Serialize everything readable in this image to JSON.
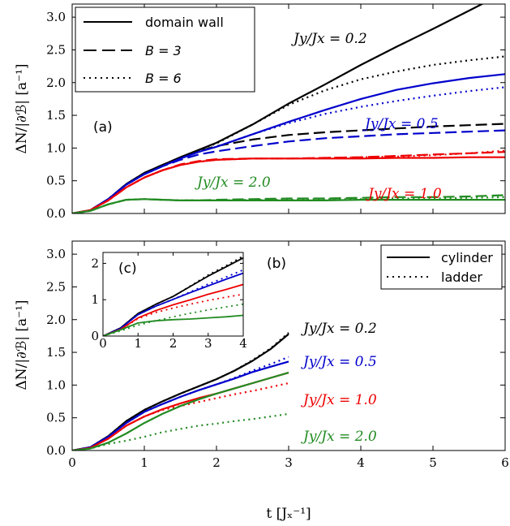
{
  "chart_data": [
    {
      "id": "a",
      "type": "line",
      "panel_label": "(a)",
      "ylabel": "ΔN/|∂ℬ| [a⁻¹]",
      "xlim": [
        0,
        6
      ],
      "ylim": [
        0,
        3.2
      ],
      "yticks": [
        "0.0",
        "0.5",
        "1.0",
        "1.5",
        "2.0",
        "2.5",
        "3.0"
      ],
      "legend": [
        {
          "label": "domain wall",
          "style": "solid"
        },
        {
          "label": "B = 3",
          "style": "dashed"
        },
        {
          "label": "B = 6",
          "style": "dotted"
        }
      ],
      "annotations": [
        {
          "text": "Jy/Jx = 0.2",
          "color": "#000000"
        },
        {
          "text": "Jy/Jx = 0.5",
          "color": "#0000cc"
        },
        {
          "text": "Jy/Jx = 1.0",
          "color": "#ee0000"
        },
        {
          "text": "Jy/Jx = 2.0",
          "color": "#228b22"
        }
      ],
      "series": [
        {
          "ratio": "0.2",
          "style": "solid",
          "color": "#000000",
          "x": [
            0,
            0.25,
            0.5,
            0.75,
            1,
            1.25,
            1.5,
            1.75,
            2,
            2.5,
            3,
            3.5,
            4,
            4.5,
            5,
            5.5,
            6
          ],
          "y": [
            0,
            0.05,
            0.22,
            0.45,
            0.62,
            0.74,
            0.86,
            0.97,
            1.08,
            1.36,
            1.68,
            1.97,
            2.27,
            2.55,
            2.82,
            3.1,
            3.38
          ]
        },
        {
          "ratio": "0.2",
          "style": "dashed",
          "color": "#000000",
          "x": [
            0,
            0.25,
            0.5,
            0.75,
            1,
            1.25,
            1.5,
            1.75,
            2,
            2.5,
            3,
            3.5,
            4,
            4.5,
            5,
            5.5,
            6
          ],
          "y": [
            0,
            0.05,
            0.22,
            0.45,
            0.62,
            0.74,
            0.86,
            0.95,
            1.03,
            1.13,
            1.2,
            1.24,
            1.27,
            1.3,
            1.33,
            1.35,
            1.37
          ]
        },
        {
          "ratio": "0.2",
          "style": "dotted",
          "color": "#000000",
          "x": [
            0,
            0.25,
            0.5,
            0.75,
            1,
            1.25,
            1.5,
            1.75,
            2,
            2.5,
            3,
            3.5,
            4,
            4.5,
            5,
            5.5,
            6
          ],
          "y": [
            0,
            0.05,
            0.22,
            0.45,
            0.62,
            0.74,
            0.86,
            0.97,
            1.07,
            1.36,
            1.66,
            1.88,
            2.05,
            2.17,
            2.27,
            2.34,
            2.4
          ]
        },
        {
          "ratio": "0.5",
          "style": "solid",
          "color": "#0000cc",
          "x": [
            0,
            0.25,
            0.5,
            0.75,
            1,
            1.25,
            1.5,
            1.75,
            2,
            2.5,
            3,
            3.5,
            4,
            4.5,
            5,
            5.5,
            6
          ],
          "y": [
            0,
            0.05,
            0.22,
            0.44,
            0.6,
            0.72,
            0.84,
            0.94,
            1.02,
            1.21,
            1.4,
            1.58,
            1.75,
            1.89,
            1.99,
            2.07,
            2.13
          ]
        },
        {
          "ratio": "0.5",
          "style": "dashed",
          "color": "#0000cc",
          "x": [
            0,
            0.25,
            0.5,
            0.75,
            1,
            1.25,
            1.5,
            1.75,
            2,
            2.5,
            3,
            3.5,
            4,
            4.5,
            5,
            5.5,
            6
          ],
          "y": [
            0,
            0.05,
            0.22,
            0.44,
            0.6,
            0.72,
            0.82,
            0.9,
            0.95,
            1.03,
            1.1,
            1.15,
            1.18,
            1.21,
            1.23,
            1.25,
            1.27
          ]
        },
        {
          "ratio": "0.5",
          "style": "dotted",
          "color": "#0000cc",
          "x": [
            0,
            0.25,
            0.5,
            0.75,
            1,
            1.25,
            1.5,
            1.75,
            2,
            2.5,
            3,
            3.5,
            4,
            4.5,
            5,
            5.5,
            6
          ],
          "y": [
            0,
            0.05,
            0.22,
            0.44,
            0.6,
            0.72,
            0.84,
            0.94,
            1.02,
            1.21,
            1.38,
            1.52,
            1.63,
            1.72,
            1.8,
            1.87,
            1.93
          ]
        },
        {
          "ratio": "1.0",
          "style": "solid",
          "color": "#ee0000",
          "x": [
            0,
            0.25,
            0.5,
            0.75,
            1,
            1.25,
            1.5,
            1.75,
            2,
            2.5,
            3,
            3.5,
            4,
            4.5,
            5,
            5.5,
            6
          ],
          "y": [
            0,
            0.05,
            0.2,
            0.4,
            0.55,
            0.66,
            0.74,
            0.79,
            0.82,
            0.84,
            0.84,
            0.84,
            0.84,
            0.85,
            0.85,
            0.86,
            0.86
          ]
        },
        {
          "ratio": "1.0",
          "style": "dashed",
          "color": "#ee0000",
          "x": [
            0,
            0.25,
            0.5,
            0.75,
            1,
            1.25,
            1.5,
            1.75,
            2,
            2.5,
            3,
            3.5,
            4,
            4.5,
            5,
            5.5,
            6
          ],
          "y": [
            0,
            0.05,
            0.2,
            0.4,
            0.55,
            0.66,
            0.75,
            0.8,
            0.83,
            0.84,
            0.84,
            0.85,
            0.86,
            0.88,
            0.9,
            0.92,
            0.94
          ]
        },
        {
          "ratio": "1.0",
          "style": "dotted",
          "color": "#ee0000",
          "x": [
            0,
            0.25,
            0.5,
            0.75,
            1,
            1.25,
            1.5,
            1.75,
            2,
            2.5,
            3,
            3.5,
            4,
            4.5,
            5,
            5.5,
            6
          ],
          "y": [
            0,
            0.05,
            0.2,
            0.4,
            0.55,
            0.66,
            0.74,
            0.79,
            0.82,
            0.84,
            0.84,
            0.85,
            0.86,
            0.87,
            0.89,
            0.92,
            0.96
          ]
        },
        {
          "ratio": "2.0",
          "style": "solid",
          "color": "#228b22",
          "x": [
            0,
            0.25,
            0.5,
            0.75,
            1,
            1.25,
            1.5,
            1.75,
            2,
            2.5,
            3,
            3.5,
            4,
            4.5,
            5,
            5.5,
            6
          ],
          "y": [
            0,
            0.04,
            0.14,
            0.21,
            0.22,
            0.21,
            0.2,
            0.2,
            0.2,
            0.2,
            0.2,
            0.2,
            0.21,
            0.21,
            0.21,
            0.21,
            0.21
          ]
        },
        {
          "ratio": "2.0",
          "style": "dashed",
          "color": "#228b22",
          "x": [
            0,
            0.25,
            0.5,
            0.75,
            1,
            1.25,
            1.5,
            1.75,
            2,
            2.5,
            3,
            3.5,
            4,
            4.5,
            5,
            5.5,
            6
          ],
          "y": [
            0,
            0.04,
            0.14,
            0.21,
            0.22,
            0.21,
            0.2,
            0.2,
            0.21,
            0.22,
            0.23,
            0.23,
            0.24,
            0.25,
            0.25,
            0.26,
            0.28
          ]
        },
        {
          "ratio": "2.0",
          "style": "dotted",
          "color": "#228b22",
          "x": [
            0,
            0.25,
            0.5,
            0.75,
            1,
            1.25,
            1.5,
            1.75,
            2,
            2.5,
            3,
            3.5,
            4,
            4.5,
            5,
            5.5,
            6
          ],
          "y": [
            0,
            0.04,
            0.14,
            0.21,
            0.22,
            0.21,
            0.2,
            0.2,
            0.2,
            0.21,
            0.21,
            0.22,
            0.22,
            0.23,
            0.23,
            0.24,
            0.25
          ]
        }
      ]
    },
    {
      "id": "b",
      "type": "line",
      "panel_label": "(b)",
      "xlabel": "t [Jₓ⁻¹]",
      "ylabel": "ΔN/|∂ℬ| [a⁻¹]",
      "xlim": [
        0,
        6
      ],
      "ylim": [
        0,
        3.2
      ],
      "xticks": [
        "0",
        "1",
        "2",
        "3",
        "4",
        "5",
        "6"
      ],
      "yticks": [
        "0.0",
        "0.5",
        "1.0",
        "1.5",
        "2.0",
        "2.5",
        "3.0"
      ],
      "legend": [
        {
          "label": "cylinder",
          "style": "solid"
        },
        {
          "label": "ladder",
          "style": "dotted"
        }
      ],
      "annotations": [
        {
          "text": "Jy/Jx = 0.2",
          "color": "#000000"
        },
        {
          "text": "Jy/Jx = 0.5",
          "color": "#0000cc"
        },
        {
          "text": "Jy/Jx = 1.0",
          "color": "#ee0000"
        },
        {
          "text": "Jy/Jx = 2.0",
          "color": "#228b22"
        }
      ],
      "series": [
        {
          "ratio": "0.2",
          "style": "solid",
          "color": "#000000",
          "x": [
            0,
            0.25,
            0.5,
            0.75,
            1,
            1.25,
            1.5,
            1.75,
            2,
            2.25,
            2.5,
            2.75,
            3
          ],
          "y": [
            0,
            0.05,
            0.22,
            0.45,
            0.62,
            0.75,
            0.87,
            0.98,
            1.09,
            1.22,
            1.37,
            1.55,
            1.78
          ]
        },
        {
          "ratio": "0.2",
          "style": "dotted",
          "color": "#000000",
          "x": [
            0,
            0.25,
            0.5,
            0.75,
            1,
            1.25,
            1.5,
            1.75,
            2,
            2.25,
            2.5,
            2.75,
            3
          ],
          "y": [
            0,
            0.05,
            0.22,
            0.45,
            0.62,
            0.75,
            0.87,
            0.98,
            1.09,
            1.22,
            1.38,
            1.56,
            1.8
          ]
        },
        {
          "ratio": "0.5",
          "style": "solid",
          "color": "#0000cc",
          "x": [
            0,
            0.25,
            0.5,
            0.75,
            1,
            1.25,
            1.5,
            1.75,
            2,
            2.25,
            2.5,
            2.75,
            3
          ],
          "y": [
            0,
            0.05,
            0.21,
            0.42,
            0.59,
            0.71,
            0.82,
            0.92,
            1.01,
            1.1,
            1.2,
            1.28,
            1.36
          ]
        },
        {
          "ratio": "0.5",
          "style": "dotted",
          "color": "#0000cc",
          "x": [
            0,
            0.25,
            0.5,
            0.75,
            1,
            1.25,
            1.5,
            1.75,
            2,
            2.25,
            2.5,
            2.75,
            3
          ],
          "y": [
            0,
            0.05,
            0.21,
            0.42,
            0.59,
            0.71,
            0.82,
            0.92,
            1.01,
            1.11,
            1.22,
            1.32,
            1.43
          ]
        },
        {
          "ratio": "1.0",
          "style": "solid",
          "color": "#ee0000",
          "x": [
            0,
            0.25,
            0.5,
            0.75,
            1,
            1.25,
            1.5,
            1.75,
            2,
            2.25,
            2.5,
            2.75,
            3
          ],
          "y": [
            0,
            0.04,
            0.18,
            0.38,
            0.52,
            0.63,
            0.72,
            0.8,
            0.87,
            0.95,
            1.03,
            1.11,
            1.19
          ]
        },
        {
          "ratio": "1.0",
          "style": "dotted",
          "color": "#ee0000",
          "x": [
            0,
            0.25,
            0.5,
            0.75,
            1,
            1.25,
            1.5,
            1.75,
            2,
            2.25,
            2.5,
            2.75,
            3
          ],
          "y": [
            0,
            0.04,
            0.18,
            0.38,
            0.52,
            0.62,
            0.68,
            0.74,
            0.8,
            0.86,
            0.91,
            0.97,
            1.03
          ]
        },
        {
          "ratio": "2.0",
          "style": "solid",
          "color": "#228b22",
          "x": [
            0,
            0.25,
            0.5,
            0.75,
            1,
            1.25,
            1.5,
            1.75,
            2,
            2.25,
            2.5,
            2.75,
            3
          ],
          "y": [
            0,
            0.03,
            0.12,
            0.26,
            0.42,
            0.56,
            0.68,
            0.78,
            0.87,
            0.95,
            1.03,
            1.11,
            1.19
          ]
        },
        {
          "ratio": "2.0",
          "style": "dotted",
          "color": "#228b22",
          "x": [
            0,
            0.25,
            0.5,
            0.75,
            1,
            1.25,
            1.5,
            1.75,
            2,
            2.25,
            2.5,
            2.75,
            3
          ],
          "y": [
            0,
            0.03,
            0.1,
            0.15,
            0.21,
            0.28,
            0.33,
            0.38,
            0.41,
            0.45,
            0.48,
            0.52,
            0.56
          ]
        }
      ]
    },
    {
      "id": "c",
      "type": "line",
      "panel_label": "(c)",
      "inset_of": "b",
      "xlim": [
        0,
        4
      ],
      "ylim": [
        0,
        2.3
      ],
      "xticks": [
        "0",
        "1",
        "2",
        "3",
        "4"
      ],
      "yticks": [
        "0",
        "1",
        "2"
      ],
      "series": [
        {
          "ratio": "0.2",
          "style": "solid",
          "color": "#000000",
          "x": [
            0,
            0.5,
            1,
            1.5,
            2,
            2.5,
            3,
            3.5,
            4
          ],
          "y": [
            0,
            0.22,
            0.62,
            0.87,
            1.09,
            1.37,
            1.65,
            1.9,
            2.15
          ]
        },
        {
          "ratio": "0.2",
          "style": "dotted",
          "color": "#000000",
          "x": [
            0,
            0.5,
            1,
            1.5,
            2,
            2.5,
            3,
            3.5,
            4
          ],
          "y": [
            0,
            0.22,
            0.62,
            0.87,
            1.09,
            1.38,
            1.68,
            1.93,
            2.2
          ]
        },
        {
          "ratio": "0.5",
          "style": "solid",
          "color": "#0000cc",
          "x": [
            0,
            0.5,
            1,
            1.5,
            2,
            2.5,
            3,
            3.5,
            4
          ],
          "y": [
            0,
            0.21,
            0.59,
            0.82,
            1.01,
            1.2,
            1.38,
            1.56,
            1.73
          ]
        },
        {
          "ratio": "0.5",
          "style": "dotted",
          "color": "#0000cc",
          "x": [
            0,
            0.5,
            1,
            1.5,
            2,
            2.5,
            3,
            3.5,
            4
          ],
          "y": [
            0,
            0.21,
            0.59,
            0.82,
            1.01,
            1.22,
            1.43,
            1.62,
            1.82
          ]
        },
        {
          "ratio": "1.0",
          "style": "solid",
          "color": "#ee0000",
          "x": [
            0,
            0.5,
            1,
            1.5,
            2,
            2.5,
            3,
            3.5,
            4
          ],
          "y": [
            0,
            0.18,
            0.5,
            0.7,
            0.86,
            1.0,
            1.15,
            1.28,
            1.42
          ]
        },
        {
          "ratio": "1.0",
          "style": "dotted",
          "color": "#ee0000",
          "x": [
            0,
            0.5,
            1,
            1.5,
            2,
            2.5,
            3,
            3.5,
            4
          ],
          "y": [
            0,
            0.18,
            0.48,
            0.65,
            0.77,
            0.88,
            0.98,
            1.07,
            1.15
          ]
        },
        {
          "ratio": "2.0",
          "style": "solid",
          "color": "#228b22",
          "x": [
            0,
            0.5,
            1,
            1.5,
            2,
            2.5,
            3,
            3.5,
            4
          ],
          "y": [
            0,
            0.17,
            0.36,
            0.42,
            0.45,
            0.47,
            0.5,
            0.53,
            0.57
          ]
        },
        {
          "ratio": "2.0",
          "style": "dotted",
          "color": "#228b22",
          "x": [
            0,
            0.5,
            1,
            1.5,
            2,
            2.5,
            3,
            3.5,
            4
          ],
          "y": [
            0,
            0.14,
            0.3,
            0.42,
            0.53,
            0.63,
            0.72,
            0.8,
            0.88
          ]
        }
      ]
    }
  ]
}
